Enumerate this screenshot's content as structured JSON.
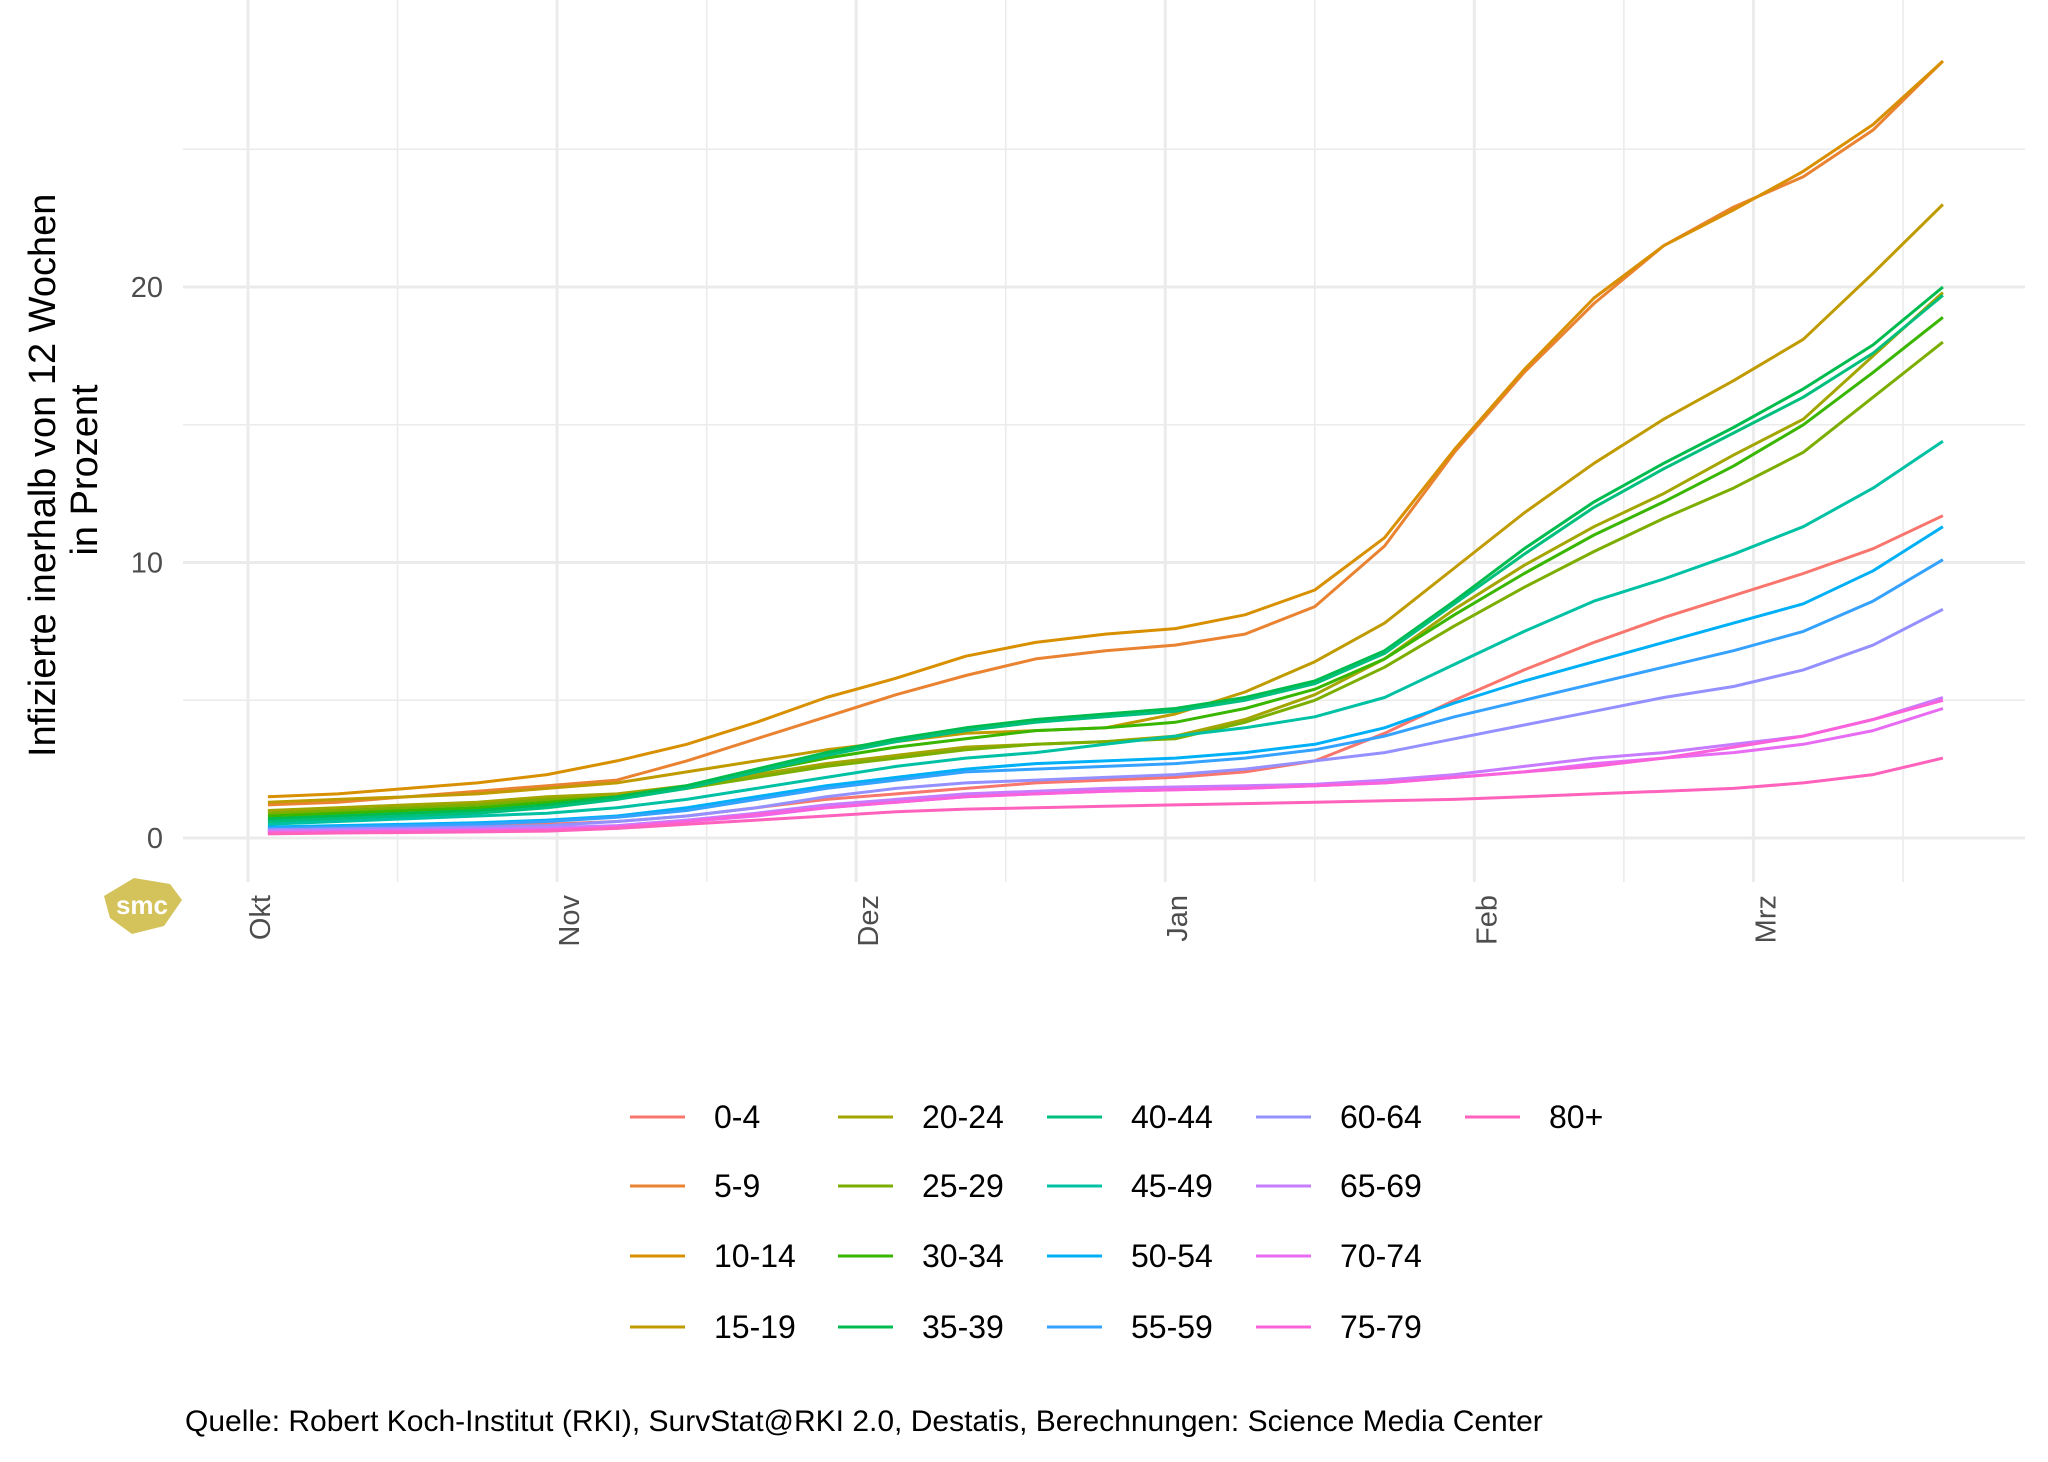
{
  "chart_data": {
    "type": "line",
    "title": "",
    "xlabel": "",
    "ylabel": "Infizierte inerhalb von 12 Wochen\nin Prozent",
    "ylabel_lines": [
      "Infizierte inerhalb von 12 Wochen",
      "in Prozent"
    ],
    "ylim": [
      -1.3,
      30
    ],
    "y_ticks": [
      0,
      10,
      20
    ],
    "x_ticks": [
      {
        "label": "Okt",
        "date": "10-01"
      },
      {
        "label": "Nov",
        "date": "11-01"
      },
      {
        "label": "Dez",
        "date": "12-01"
      },
      {
        "label": "Jan",
        "date": "01-01"
      },
      {
        "label": "Feb",
        "date": "02-01"
      },
      {
        "label": "Mrz",
        "date": "03-01"
      }
    ],
    "grid": true,
    "legend_position": "bottom",
    "x": [
      "10-03",
      "10-10",
      "10-17",
      "10-24",
      "10-31",
      "11-07",
      "11-14",
      "11-21",
      "11-28",
      "12-05",
      "12-12",
      "12-19",
      "12-26",
      "01-02",
      "01-09",
      "01-16",
      "01-23",
      "01-30",
      "02-06",
      "02-13",
      "02-20",
      "02-27",
      "03-06",
      "03-13",
      "03-20"
    ],
    "series": [
      {
        "name": "0-4",
        "color": "#F8766D",
        "values": [
          0.3,
          0.35,
          0.4,
          0.45,
          0.5,
          0.6,
          0.8,
          1.1,
          1.4,
          1.6,
          1.8,
          2.0,
          2.1,
          2.2,
          2.4,
          2.8,
          3.8,
          5.0,
          6.1,
          7.1,
          8.0,
          8.8,
          9.6,
          10.5,
          11.7
        ]
      },
      {
        "name": "5-9",
        "color": "#EA8331",
        "values": [
          1.2,
          1.3,
          1.5,
          1.7,
          1.9,
          2.1,
          2.8,
          3.6,
          4.4,
          5.2,
          5.9,
          6.5,
          6.8,
          7.0,
          7.4,
          8.4,
          10.6,
          14.0,
          16.9,
          19.4,
          21.5,
          22.9,
          24.0,
          25.7,
          28.2
        ]
      },
      {
        "name": "10-14",
        "color": "#D89000",
        "values": [
          1.5,
          1.6,
          1.8,
          2.0,
          2.3,
          2.8,
          3.4,
          4.2,
          5.1,
          5.8,
          6.6,
          7.1,
          7.4,
          7.6,
          8.1,
          9.0,
          10.9,
          14.1,
          17.0,
          19.6,
          21.5,
          22.8,
          24.2,
          25.9,
          28.2
        ]
      },
      {
        "name": "15-19",
        "color": "#C09B00",
        "values": [
          1.3,
          1.4,
          1.5,
          1.6,
          1.8,
          2.0,
          2.4,
          2.8,
          3.2,
          3.5,
          3.8,
          3.9,
          4.0,
          4.5,
          5.3,
          6.4,
          7.8,
          9.8,
          11.8,
          13.6,
          15.2,
          16.6,
          18.1,
          20.5,
          23.0
        ]
      },
      {
        "name": "20-24",
        "color": "#A3A500",
        "values": [
          1.0,
          1.1,
          1.2,
          1.3,
          1.5,
          1.6,
          1.9,
          2.3,
          2.7,
          3.0,
          3.3,
          3.4,
          3.5,
          3.7,
          4.3,
          5.2,
          6.5,
          8.3,
          9.9,
          11.3,
          12.5,
          13.9,
          15.2,
          17.5,
          19.8
        ]
      },
      {
        "name": "25-29",
        "color": "#7CAE00",
        "values": [
          0.9,
          1.0,
          1.1,
          1.2,
          1.4,
          1.5,
          1.8,
          2.2,
          2.6,
          2.9,
          3.2,
          3.4,
          3.5,
          3.6,
          4.2,
          5.0,
          6.2,
          7.7,
          9.1,
          10.4,
          11.6,
          12.7,
          14.0,
          16.0,
          18.0
        ]
      },
      {
        "name": "30-34",
        "color": "#39B600",
        "values": [
          0.8,
          0.9,
          1.0,
          1.1,
          1.3,
          1.5,
          1.9,
          2.4,
          2.9,
          3.3,
          3.6,
          3.9,
          4.0,
          4.2,
          4.7,
          5.4,
          6.5,
          8.1,
          9.6,
          11.0,
          12.2,
          13.5,
          15.0,
          16.9,
          18.9
        ]
      },
      {
        "name": "35-39",
        "color": "#00BB4E",
        "values": [
          0.7,
          0.8,
          0.9,
          1.0,
          1.2,
          1.5,
          1.9,
          2.5,
          3.1,
          3.6,
          4.0,
          4.3,
          4.5,
          4.7,
          5.1,
          5.7,
          6.8,
          8.6,
          10.5,
          12.2,
          13.6,
          14.9,
          16.3,
          17.9,
          20.0
        ]
      },
      {
        "name": "40-44",
        "color": "#00BF7D",
        "values": [
          0.6,
          0.7,
          0.8,
          0.9,
          1.1,
          1.4,
          1.8,
          2.4,
          3.0,
          3.5,
          3.9,
          4.2,
          4.4,
          4.6,
          5.0,
          5.6,
          6.7,
          8.5,
          10.3,
          12.0,
          13.4,
          14.7,
          16.0,
          17.6,
          19.7
        ]
      },
      {
        "name": "45-49",
        "color": "#00C1A3",
        "values": [
          0.5,
          0.6,
          0.7,
          0.8,
          0.9,
          1.1,
          1.4,
          1.8,
          2.2,
          2.6,
          2.9,
          3.1,
          3.4,
          3.7,
          4.0,
          4.4,
          5.1,
          6.3,
          7.5,
          8.6,
          9.4,
          10.3,
          11.3,
          12.7,
          14.4
        ]
      },
      {
        "name": "50-54",
        "color": "#00B0F6",
        "values": [
          0.4,
          0.45,
          0.5,
          0.55,
          0.65,
          0.8,
          1.1,
          1.5,
          1.9,
          2.2,
          2.5,
          2.7,
          2.8,
          2.9,
          3.1,
          3.4,
          4.0,
          4.9,
          5.7,
          6.4,
          7.1,
          7.8,
          8.5,
          9.7,
          11.3
        ]
      },
      {
        "name": "55-59",
        "color": "#35A2FF",
        "values": [
          0.35,
          0.4,
          0.45,
          0.5,
          0.6,
          0.75,
          1.0,
          1.4,
          1.8,
          2.1,
          2.4,
          2.5,
          2.6,
          2.7,
          2.9,
          3.2,
          3.7,
          4.4,
          5.0,
          5.6,
          6.2,
          6.8,
          7.5,
          8.6,
          10.1
        ]
      },
      {
        "name": "60-64",
        "color": "#9590FF",
        "values": [
          0.3,
          0.33,
          0.36,
          0.4,
          0.45,
          0.6,
          0.8,
          1.1,
          1.5,
          1.8,
          2.0,
          2.1,
          2.2,
          2.3,
          2.5,
          2.8,
          3.1,
          3.6,
          4.1,
          4.6,
          5.1,
          5.5,
          6.1,
          7.0,
          8.3
        ]
      },
      {
        "name": "65-69",
        "color": "#C77CFF",
        "values": [
          0.25,
          0.28,
          0.3,
          0.33,
          0.37,
          0.45,
          0.65,
          0.9,
          1.2,
          1.4,
          1.6,
          1.7,
          1.8,
          1.85,
          1.9,
          1.95,
          2.1,
          2.3,
          2.6,
          2.9,
          3.1,
          3.4,
          3.7,
          4.3,
          5.1
        ]
      },
      {
        "name": "70-74",
        "color": "#E76BF3",
        "values": [
          0.2,
          0.22,
          0.25,
          0.28,
          0.3,
          0.4,
          0.6,
          0.8,
          1.1,
          1.3,
          1.5,
          1.6,
          1.7,
          1.75,
          1.8,
          1.9,
          2.0,
          2.2,
          2.4,
          2.7,
          2.9,
          3.1,
          3.4,
          3.9,
          4.7
        ]
      },
      {
        "name": "75-79",
        "color": "#FA62DB",
        "values": [
          0.2,
          0.22,
          0.25,
          0.28,
          0.3,
          0.4,
          0.6,
          0.85,
          1.1,
          1.3,
          1.5,
          1.6,
          1.7,
          1.75,
          1.8,
          1.9,
          2.0,
          2.2,
          2.4,
          2.6,
          2.9,
          3.3,
          3.7,
          4.3,
          5.0
        ]
      },
      {
        "name": "80+",
        "color": "#FF62BC",
        "values": [
          0.15,
          0.18,
          0.2,
          0.22,
          0.25,
          0.35,
          0.5,
          0.65,
          0.8,
          0.95,
          1.05,
          1.1,
          1.15,
          1.2,
          1.25,
          1.3,
          1.35,
          1.4,
          1.5,
          1.6,
          1.7,
          1.8,
          2.0,
          2.3,
          2.9
        ]
      }
    ]
  },
  "caption": "Quelle: Robert Koch-Institut (RKI), SurvStat@RKI 2.0, Destatis, Berechnungen: Science Media Center",
  "logo": {
    "text": "smc",
    "color": "#D4C25A"
  }
}
